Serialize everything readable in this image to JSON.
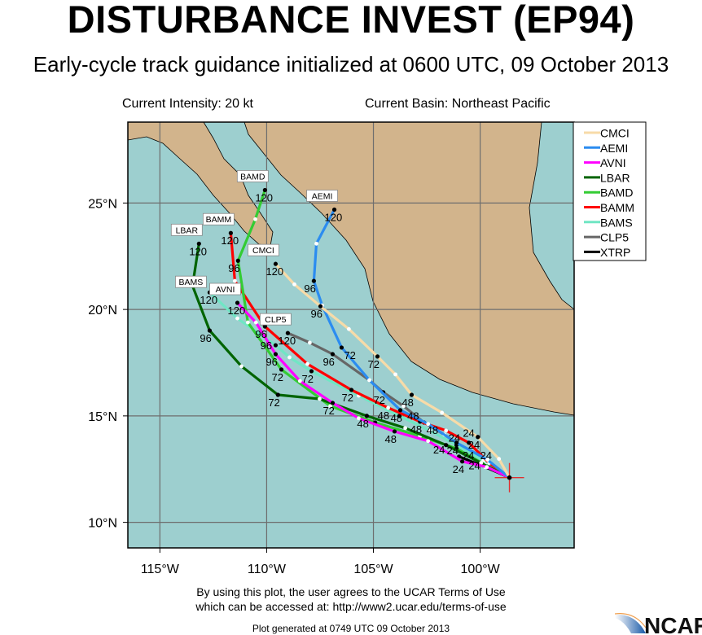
{
  "header": {
    "title": "DISTURBANCE INVEST (EP94)",
    "subtitle": "Early-cycle track guidance initialized at 0600 UTC, 09 October 2013",
    "intensity": "Current Intensity: 20 kt",
    "basin": "Current Basin: Northeast Pacific"
  },
  "footer": {
    "terms_line1": "By using this plot, the user agrees to the UCAR Terms of Use",
    "terms_line2": "which can be accessed at: http://www2.ucar.edu/terms-of-use",
    "generated": "Plot generated at 0749 UTC   09 October 2013",
    "logo": "NCAR"
  },
  "chart_data": {
    "type": "map-tracks",
    "lon_range": [
      -116.5,
      -95.6
    ],
    "lat_range": [
      8.8,
      28.8
    ],
    "grid": true,
    "lon_ticks": [
      {
        "v": -115,
        "label": "115°W"
      },
      {
        "v": -110,
        "label": "110°W"
      },
      {
        "v": -105,
        "label": "105°W"
      },
      {
        "v": -100,
        "label": "100°W"
      }
    ],
    "lat_ticks": [
      {
        "v": 25,
        "label": "25°N"
      },
      {
        "v": 20,
        "label": "20°N"
      },
      {
        "v": 15,
        "label": "15°N"
      },
      {
        "v": 10,
        "label": "10°N"
      }
    ],
    "colors": {
      "land": "#d2b48c",
      "ocean": "#9dcfcf",
      "grid": "#6e6e6e",
      "initial_position": "#e03030"
    },
    "initial_position": [
      -98.63,
      12.1
    ],
    "legend_placement": "top-right",
    "labeled_hours": [
      24,
      48,
      72,
      96,
      120
    ],
    "series": [
      {
        "name": "CMCI",
        "color": "#f7dba8",
        "points": [
          [
            0,
            -98.63,
            12.1
          ],
          [
            12,
            -99.12,
            12.98
          ],
          [
            24,
            -100.11,
            14.01
          ],
          [
            36,
            -101.79,
            15.15
          ],
          [
            48,
            -103.21,
            15.99
          ],
          [
            60,
            -103.97,
            16.95
          ],
          [
            72,
            -104.81,
            17.79
          ],
          [
            84,
            -106.15,
            19.08
          ],
          [
            96,
            -107.48,
            20.15
          ],
          [
            108,
            -108.7,
            21.18
          ],
          [
            120,
            -109.58,
            22.14
          ]
        ]
      },
      {
        "name": "AEMI",
        "color": "#2b8cf0",
        "points": [
          [
            0,
            -98.63,
            12.1
          ],
          [
            12,
            -99.66,
            12.94
          ],
          [
            24,
            -101.11,
            13.74
          ],
          [
            36,
            -102.44,
            14.62
          ],
          [
            48,
            -103.74,
            15.27
          ],
          [
            60,
            -105.19,
            16.68
          ],
          [
            72,
            -106.49,
            18.21
          ],
          [
            84,
            -107.4,
            20.19
          ],
          [
            96,
            -107.79,
            21.34
          ],
          [
            108,
            -107.67,
            23.09
          ],
          [
            120,
            -106.83,
            24.69
          ]
        ]
      },
      {
        "name": "AVNI",
        "color": "#ff00ff",
        "points": [
          [
            0,
            -98.63,
            12.1
          ],
          [
            12,
            -99.69,
            12.6
          ],
          [
            24,
            -100.84,
            12.86
          ],
          [
            36,
            -102.44,
            13.82
          ],
          [
            48,
            -104.01,
            14.27
          ],
          [
            60,
            -105.69,
            14.89
          ],
          [
            72,
            -106.91,
            15.61
          ],
          [
            84,
            -108.44,
            16.64
          ],
          [
            96,
            -109.58,
            17.9
          ],
          [
            108,
            -110.5,
            19.39
          ],
          [
            120,
            -111.37,
            20.31
          ]
        ]
      },
      {
        "name": "LBAR",
        "color": "#006400",
        "points": [
          [
            0,
            -98.63,
            12.1
          ],
          [
            12,
            -99.96,
            12.79
          ],
          [
            24,
            -101.6,
            13.63
          ],
          [
            36,
            -103.51,
            14.43
          ],
          [
            48,
            -105.31,
            15.0
          ],
          [
            60,
            -107.52,
            15.8
          ],
          [
            72,
            -109.47,
            15.99
          ],
          [
            84,
            -111.18,
            17.33
          ],
          [
            96,
            -112.67,
            19.01
          ],
          [
            108,
            -113.47,
            21.11
          ],
          [
            120,
            -113.17,
            23.09
          ]
        ]
      },
      {
        "name": "BAMD",
        "color": "#33cc33",
        "points": [
          [
            0,
            -98.63,
            12.1
          ],
          [
            12,
            -99.77,
            12.71
          ],
          [
            24,
            -101.11,
            13.47
          ],
          [
            36,
            -102.82,
            14.05
          ],
          [
            48,
            -104.92,
            14.69
          ],
          [
            60,
            -107.02,
            15.46
          ],
          [
            72,
            -109.31,
            17.18
          ],
          [
            84,
            -110.88,
            19.39
          ],
          [
            96,
            -111.34,
            22.29
          ],
          [
            108,
            -110.53,
            24.24
          ],
          [
            120,
            -110.08,
            25.61
          ]
        ]
      },
      {
        "name": "BAMM",
        "color": "#ff0000",
        "points": [
          [
            0,
            -98.63,
            12.1
          ],
          [
            12,
            -99.58,
            12.79
          ],
          [
            24,
            -100.53,
            13.74
          ],
          [
            36,
            -101.6,
            14.31
          ],
          [
            48,
            -102.82,
            14.73
          ],
          [
            60,
            -104.31,
            15.38
          ],
          [
            72,
            -106.03,
            16.22
          ],
          [
            84,
            -108.09,
            17.44
          ],
          [
            96,
            -110.08,
            19.2
          ],
          [
            108,
            -111.49,
            21.34
          ],
          [
            120,
            -111.68,
            23.59
          ]
        ]
      },
      {
        "name": "BAMS",
        "color": "#70e6c4",
        "points": [
          [
            0,
            -98.63,
            12.1
          ],
          [
            12,
            -99.85,
            12.9
          ],
          [
            24,
            -101.11,
            13.63
          ],
          [
            36,
            -102.37,
            14.31
          ],
          [
            48,
            -103.78,
            15.0
          ],
          [
            60,
            -105.69,
            15.95
          ],
          [
            72,
            -107.9,
            17.1
          ],
          [
            84,
            -108.93,
            17.75
          ],
          [
            96,
            -109.58,
            18.32
          ],
          [
            108,
            -111.37,
            19.58
          ],
          [
            120,
            -112.67,
            20.8
          ]
        ]
      },
      {
        "name": "CLP5",
        "color": "#666666",
        "points": [
          [
            0,
            -98.63,
            12.1
          ],
          [
            12,
            -99.58,
            12.71
          ],
          [
            24,
            -100.53,
            13.36
          ],
          [
            36,
            -101.68,
            14.12
          ],
          [
            48,
            -102.63,
            14.69
          ],
          [
            60,
            -103.59,
            15.46
          ],
          [
            72,
            -104.54,
            16.11
          ],
          [
            84,
            -105.19,
            16.68
          ],
          [
            96,
            -106.91,
            17.9
          ],
          [
            108,
            -107.98,
            18.44
          ],
          [
            120,
            -109.01,
            18.89
          ]
        ]
      },
      {
        "name": "XTRP",
        "color": "#000000",
        "points": [
          [
            0,
            -98.63,
            12.1
          ],
          [
            12,
            -99.77,
            12.6
          ],
          [
            24,
            -100.99,
            13.09
          ]
        ]
      }
    ]
  }
}
